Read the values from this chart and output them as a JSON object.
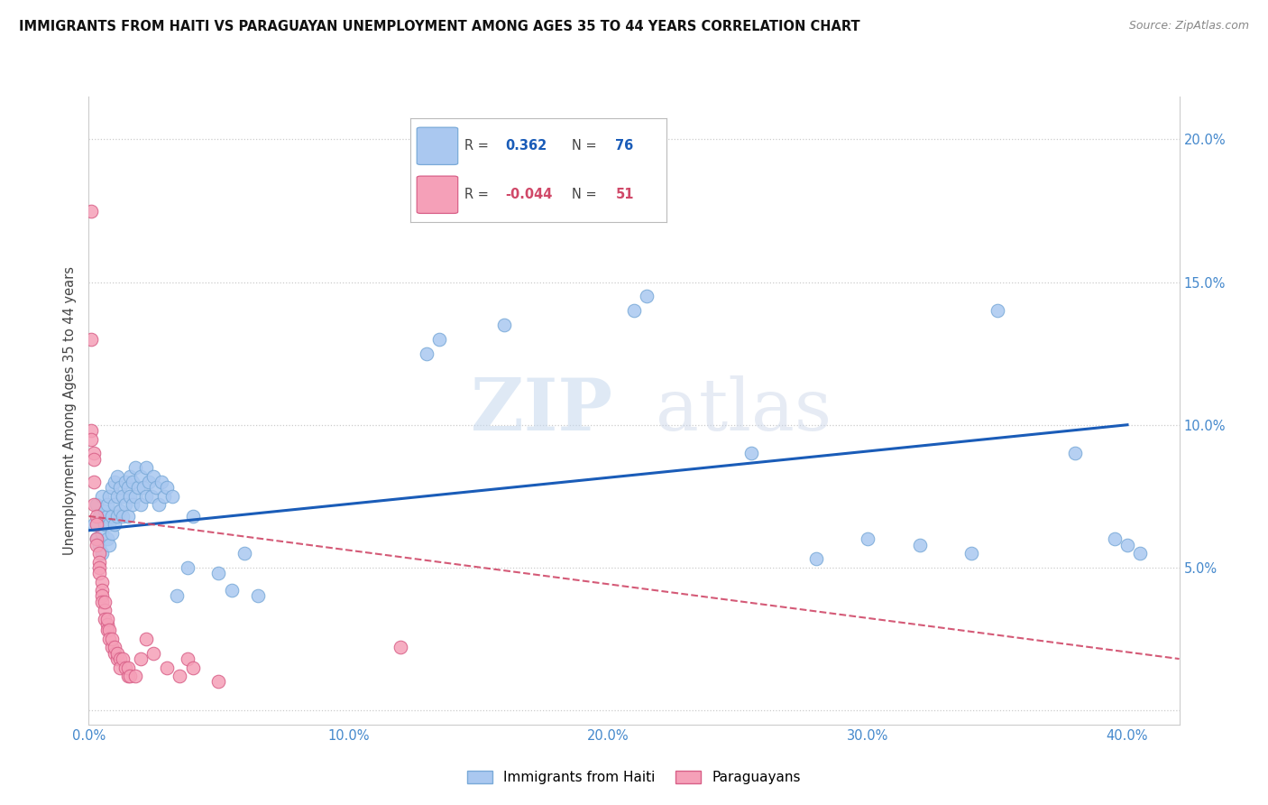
{
  "title": "IMMIGRANTS FROM HAITI VS PARAGUAYAN UNEMPLOYMENT AMONG AGES 35 TO 44 YEARS CORRELATION CHART",
  "source": "Source: ZipAtlas.com",
  "ylabel": "Unemployment Among Ages 35 to 44 years",
  "xlim": [
    0.0,
    0.42
  ],
  "ylim": [
    -0.005,
    0.215
  ],
  "haiti_color": "#aac8f0",
  "haiti_edge": "#7aaad8",
  "paraguay_color": "#f5a0b8",
  "paraguay_edge": "#d86088",
  "line1_color": "#1a5cb8",
  "line2_color": "#d04868",
  "watermark": "ZIPatlas",
  "haiti_points": [
    [
      0.002,
      0.065
    ],
    [
      0.003,
      0.06
    ],
    [
      0.003,
      0.072
    ],
    [
      0.004,
      0.058
    ],
    [
      0.004,
      0.068
    ],
    [
      0.005,
      0.062
    ],
    [
      0.005,
      0.075
    ],
    [
      0.005,
      0.055
    ],
    [
      0.006,
      0.07
    ],
    [
      0.006,
      0.065
    ],
    [
      0.007,
      0.06
    ],
    [
      0.007,
      0.068
    ],
    [
      0.007,
      0.072
    ],
    [
      0.008,
      0.058
    ],
    [
      0.008,
      0.065
    ],
    [
      0.008,
      0.075
    ],
    [
      0.009,
      0.062
    ],
    [
      0.009,
      0.068
    ],
    [
      0.009,
      0.078
    ],
    [
      0.01,
      0.065
    ],
    [
      0.01,
      0.072
    ],
    [
      0.01,
      0.08
    ],
    [
      0.011,
      0.068
    ],
    [
      0.011,
      0.075
    ],
    [
      0.011,
      0.082
    ],
    [
      0.012,
      0.07
    ],
    [
      0.012,
      0.078
    ],
    [
      0.013,
      0.068
    ],
    [
      0.013,
      0.075
    ],
    [
      0.014,
      0.072
    ],
    [
      0.014,
      0.08
    ],
    [
      0.015,
      0.068
    ],
    [
      0.015,
      0.078
    ],
    [
      0.016,
      0.075
    ],
    [
      0.016,
      0.082
    ],
    [
      0.017,
      0.072
    ],
    [
      0.017,
      0.08
    ],
    [
      0.018,
      0.075
    ],
    [
      0.018,
      0.085
    ],
    [
      0.019,
      0.078
    ],
    [
      0.02,
      0.072
    ],
    [
      0.02,
      0.082
    ],
    [
      0.021,
      0.078
    ],
    [
      0.022,
      0.075
    ],
    [
      0.022,
      0.085
    ],
    [
      0.023,
      0.08
    ],
    [
      0.024,
      0.075
    ],
    [
      0.025,
      0.082
    ],
    [
      0.026,
      0.078
    ],
    [
      0.027,
      0.072
    ],
    [
      0.028,
      0.08
    ],
    [
      0.029,
      0.075
    ],
    [
      0.03,
      0.078
    ],
    [
      0.032,
      0.075
    ],
    [
      0.034,
      0.04
    ],
    [
      0.038,
      0.05
    ],
    [
      0.04,
      0.068
    ],
    [
      0.05,
      0.048
    ],
    [
      0.055,
      0.042
    ],
    [
      0.06,
      0.055
    ],
    [
      0.065,
      0.04
    ],
    [
      0.13,
      0.125
    ],
    [
      0.135,
      0.13
    ],
    [
      0.16,
      0.135
    ],
    [
      0.21,
      0.14
    ],
    [
      0.215,
      0.145
    ],
    [
      0.255,
      0.09
    ],
    [
      0.28,
      0.053
    ],
    [
      0.3,
      0.06
    ],
    [
      0.32,
      0.058
    ],
    [
      0.34,
      0.055
    ],
    [
      0.35,
      0.14
    ],
    [
      0.38,
      0.09
    ],
    [
      0.395,
      0.06
    ],
    [
      0.4,
      0.058
    ],
    [
      0.405,
      0.055
    ]
  ],
  "paraguay_points": [
    [
      0.001,
      0.175
    ],
    [
      0.001,
      0.13
    ],
    [
      0.001,
      0.098
    ],
    [
      0.001,
      0.095
    ],
    [
      0.002,
      0.09
    ],
    [
      0.002,
      0.088
    ],
    [
      0.002,
      0.08
    ],
    [
      0.002,
      0.072
    ],
    [
      0.003,
      0.068
    ],
    [
      0.003,
      0.065
    ],
    [
      0.003,
      0.06
    ],
    [
      0.003,
      0.058
    ],
    [
      0.004,
      0.055
    ],
    [
      0.004,
      0.052
    ],
    [
      0.004,
      0.05
    ],
    [
      0.004,
      0.048
    ],
    [
      0.005,
      0.045
    ],
    [
      0.005,
      0.042
    ],
    [
      0.005,
      0.04
    ],
    [
      0.005,
      0.038
    ],
    [
      0.006,
      0.035
    ],
    [
      0.006,
      0.038
    ],
    [
      0.006,
      0.032
    ],
    [
      0.007,
      0.03
    ],
    [
      0.007,
      0.028
    ],
    [
      0.007,
      0.032
    ],
    [
      0.008,
      0.028
    ],
    [
      0.008,
      0.025
    ],
    [
      0.009,
      0.022
    ],
    [
      0.009,
      0.025
    ],
    [
      0.01,
      0.02
    ],
    [
      0.01,
      0.022
    ],
    [
      0.011,
      0.018
    ],
    [
      0.011,
      0.02
    ],
    [
      0.012,
      0.018
    ],
    [
      0.012,
      0.015
    ],
    [
      0.013,
      0.018
    ],
    [
      0.014,
      0.015
    ],
    [
      0.015,
      0.012
    ],
    [
      0.015,
      0.015
    ],
    [
      0.016,
      0.012
    ],
    [
      0.018,
      0.012
    ],
    [
      0.02,
      0.018
    ],
    [
      0.022,
      0.025
    ],
    [
      0.025,
      0.02
    ],
    [
      0.03,
      0.015
    ],
    [
      0.035,
      0.012
    ],
    [
      0.038,
      0.018
    ],
    [
      0.04,
      0.015
    ],
    [
      0.05,
      0.01
    ],
    [
      0.12,
      0.022
    ]
  ],
  "haiti_line": [
    0.0,
    0.4,
    0.063,
    0.1
  ],
  "paraguay_line": [
    0.0,
    0.42,
    0.068,
    0.018
  ]
}
